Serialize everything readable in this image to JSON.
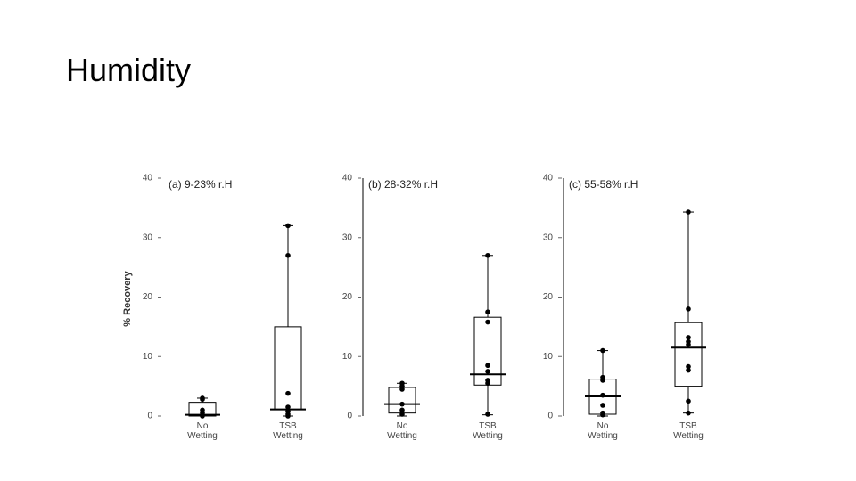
{
  "slide": {
    "title": "Humidity"
  },
  "chart_data": [
    {
      "type": "box",
      "title": "(a) 9-23% r.H",
      "y_label": "% Recovery",
      "axis_line": false,
      "categories": [
        "No Wetting",
        "TSB Wetting"
      ],
      "boxes": [
        {
          "min": 0,
          "q1": 0,
          "median": 0.2,
          "q3": 2.3,
          "max": 3
        },
        {
          "min": 0,
          "q1": 1.1,
          "median": 1.1,
          "q3": 15,
          "max": 32
        }
      ],
      "points": [
        [
          3,
          2.8,
          1,
          0.5,
          0.2,
          0
        ],
        [
          32,
          27,
          3.8,
          1.5,
          0.8,
          0.3,
          0
        ]
      ],
      "ylim": [
        0,
        40
      ],
      "yticks": [
        0,
        10,
        20,
        30,
        40
      ],
      "color": "#000000"
    },
    {
      "type": "box",
      "title": "(b) 28-32% r.H",
      "axis_line": true,
      "categories": [
        "No Wetting",
        "TSB Wetting"
      ],
      "boxes": [
        {
          "min": 0,
          "q1": 0.5,
          "median": 2,
          "q3": 4.8,
          "max": 5.5
        },
        {
          "min": 0.2,
          "q1": 5.2,
          "median": 7,
          "q3": 16.6,
          "max": 27
        }
      ],
      "points": [
        [
          5.5,
          5,
          4.5,
          2,
          1,
          0.3
        ],
        [
          27,
          17.5,
          15.8,
          8.5,
          7.5,
          6,
          5.5,
          0.3
        ]
      ],
      "ylim": [
        0,
        40
      ],
      "yticks": [
        0,
        10,
        20,
        30,
        40
      ],
      "color": "#000000"
    },
    {
      "type": "box",
      "title": "(c) 55-58% r.H",
      "axis_line": true,
      "categories": [
        "No Wetting",
        "TSB Wetting"
      ],
      "boxes": [
        {
          "min": 0,
          "q1": 0.3,
          "median": 3.3,
          "q3": 6.2,
          "max": 11
        },
        {
          "min": 0.5,
          "q1": 5,
          "median": 11.5,
          "q3": 15.7,
          "max": 34.3
        }
      ],
      "points": [
        [
          11,
          6.5,
          6,
          3.5,
          1.8,
          0.5,
          0.2
        ],
        [
          34.3,
          18,
          13.2,
          12.5,
          12,
          8.3,
          7.7,
          2.5,
          0.5
        ]
      ],
      "ylim": [
        0,
        40
      ],
      "yticks": [
        0,
        10,
        20,
        30,
        40
      ],
      "color": "#000000"
    }
  ]
}
